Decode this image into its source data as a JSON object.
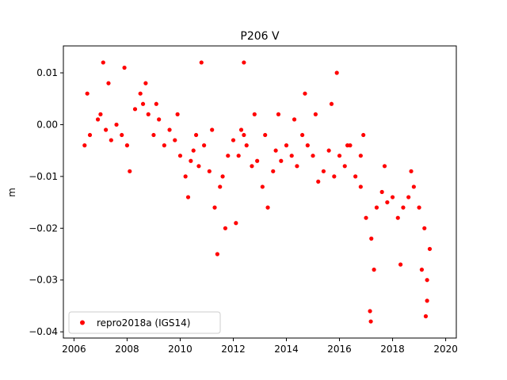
{
  "chart_data": {
    "type": "scatter",
    "title": "P206 V",
    "xlabel": "",
    "ylabel": "m",
    "xlim": [
      2005.6,
      2020.4
    ],
    "ylim": [
      -0.0412,
      0.0152
    ],
    "x_ticks": [
      2006,
      2008,
      2010,
      2012,
      2014,
      2016,
      2018,
      2020
    ],
    "x_tick_labels": [
      "2006",
      "2008",
      "2010",
      "2012",
      "2014",
      "2016",
      "2018",
      "2020"
    ],
    "y_ticks": [
      0.01,
      0.0,
      -0.01,
      -0.02,
      -0.03,
      -0.04
    ],
    "y_tick_labels": [
      "0.01",
      "0.00",
      "−0.01",
      "−0.02",
      "−0.03",
      "−0.04"
    ],
    "grid": false,
    "legend": {
      "position": "lower-left",
      "entries": [
        "repro2018a (IGS14)"
      ]
    },
    "series": [
      {
        "name": "repro2018a (IGS14)",
        "color": "#ff0000",
        "marker": "circle",
        "x": [
          2006.4,
          2006.6,
          2006.9,
          2007.0,
          2007.2,
          2007.4,
          2007.6,
          2007.8,
          2008.0,
          2008.3,
          2008.5,
          2008.6,
          2008.8,
          2009.0,
          2009.2,
          2009.4,
          2009.6,
          2009.8,
          2010.0,
          2010.2,
          2010.4,
          2010.5,
          2010.7,
          2010.9,
          2011.1,
          2011.3,
          2011.5,
          2011.6,
          2011.8,
          2012.0,
          2012.2,
          2012.4,
          2012.5,
          2012.7,
          2012.9,
          2013.1,
          2013.3,
          2013.5,
          2013.6,
          2013.8,
          2014.0,
          2014.2,
          2014.4,
          2014.6,
          2014.8,
          2015.0,
          2015.2,
          2015.4,
          2015.6,
          2015.8,
          2016.0,
          2016.2,
          2016.4,
          2016.6,
          2016.8,
          2017.0,
          2017.2,
          2017.4,
          2017.6,
          2017.8,
          2018.0,
          2018.2,
          2018.4,
          2018.6,
          2018.8,
          2019.0,
          2019.2,
          2019.4,
          2006.5,
          2007.3,
          2008.1,
          2008.7,
          2009.1,
          2009.9,
          2010.3,
          2010.6,
          2011.2,
          2011.7,
          2012.3,
          2012.8,
          2013.2,
          2013.7,
          2014.3,
          2014.7,
          2015.1,
          2015.7,
          2016.3,
          2016.9,
          2017.3,
          2017.7,
          2018.3,
          2018.7,
          2019.1,
          2019.3,
          2007.1,
          2007.9,
          2010.8,
          2012.4,
          2017.15,
          2017.18,
          2019.25,
          2019.3,
          2016.8,
          2012.1,
          2015.9,
          2011.4
        ],
        "y": [
          -0.004,
          -0.002,
          0.001,
          0.002,
          -0.001,
          -0.003,
          0.0,
          -0.002,
          -0.004,
          0.003,
          0.006,
          0.004,
          0.002,
          -0.002,
          0.001,
          -0.004,
          -0.001,
          -0.003,
          -0.006,
          -0.01,
          -0.007,
          -0.005,
          -0.008,
          -0.004,
          -0.009,
          -0.016,
          -0.012,
          -0.01,
          -0.006,
          -0.003,
          -0.006,
          -0.002,
          -0.004,
          -0.008,
          -0.007,
          -0.012,
          -0.016,
          -0.009,
          -0.005,
          -0.007,
          -0.004,
          -0.006,
          -0.008,
          -0.002,
          -0.004,
          -0.006,
          -0.011,
          -0.009,
          -0.005,
          -0.01,
          -0.006,
          -0.008,
          -0.004,
          -0.01,
          -0.012,
          -0.018,
          -0.022,
          -0.016,
          -0.013,
          -0.015,
          -0.014,
          -0.018,
          -0.016,
          -0.014,
          -0.012,
          -0.016,
          -0.02,
          -0.024,
          0.006,
          0.008,
          -0.009,
          0.008,
          0.004,
          0.002,
          -0.014,
          -0.002,
          -0.001,
          -0.02,
          -0.001,
          0.002,
          -0.002,
          0.002,
          0.001,
          0.006,
          0.002,
          0.004,
          -0.004,
          -0.002,
          -0.028,
          -0.008,
          -0.027,
          -0.009,
          -0.028,
          -0.03,
          0.012,
          0.011,
          0.012,
          0.012,
          -0.036,
          -0.038,
          -0.037,
          -0.034,
          -0.006,
          -0.019,
          0.01,
          -0.025
        ]
      }
    ]
  }
}
